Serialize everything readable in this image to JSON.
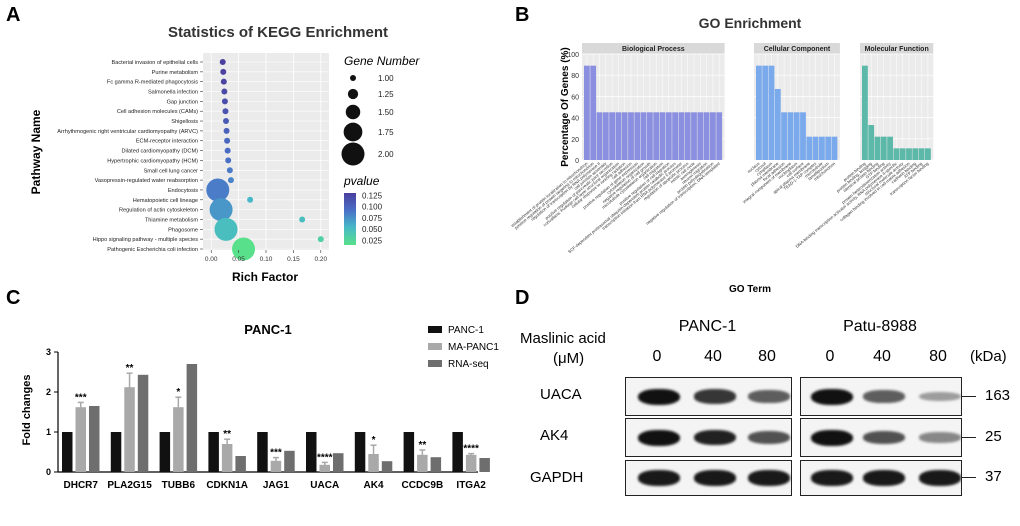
{
  "panels": {
    "a": {
      "label": "A",
      "chart_data": {
        "type": "scatter",
        "title": "Statistics of KEGG Enrichment",
        "xlabel": "Rich Factor",
        "ylabel": "Pathway Name",
        "xlim": [
          -0.015,
          0.215
        ],
        "xticks": [
          "0.00",
          "0.05",
          "0.10",
          "0.15",
          "0.20"
        ],
        "xtick_values": [
          0,
          0.05,
          0.1,
          0.15,
          0.2
        ],
        "pathways": [
          {
            "name": "Bacterial invasion of epithelial cells",
            "rich_factor": 0.021,
            "gene_number": 1,
            "pvalue": 0.13
          },
          {
            "name": "Purine metabolism",
            "rich_factor": 0.022,
            "gene_number": 1,
            "pvalue": 0.128
          },
          {
            "name": "Fc gamma R-mediated phagocytosis",
            "rich_factor": 0.023,
            "gene_number": 1,
            "pvalue": 0.126
          },
          {
            "name": "Salmonella infection",
            "rich_factor": 0.024,
            "gene_number": 1,
            "pvalue": 0.122
          },
          {
            "name": "Gap junction",
            "rich_factor": 0.025,
            "gene_number": 1,
            "pvalue": 0.118
          },
          {
            "name": "Cell adhesion molecules (CAMs)",
            "rich_factor": 0.026,
            "gene_number": 1,
            "pvalue": 0.113
          },
          {
            "name": "Shigellosis",
            "rich_factor": 0.027,
            "gene_number": 1,
            "pvalue": 0.108
          },
          {
            "name": "Arrhythmogenic right ventricular cardiomyopathy (ARVC)",
            "rich_factor": 0.028,
            "gene_number": 1,
            "pvalue": 0.103
          },
          {
            "name": "ECM-receptor interaction",
            "rich_factor": 0.029,
            "gene_number": 1,
            "pvalue": 0.099
          },
          {
            "name": "Dilated cardiomyopathy (DCM)",
            "rich_factor": 0.03,
            "gene_number": 1,
            "pvalue": 0.095
          },
          {
            "name": "Hypertrophic cardiomyopathy (HCM)",
            "rich_factor": 0.031,
            "gene_number": 1,
            "pvalue": 0.092
          },
          {
            "name": "Small cell lung cancer",
            "rich_factor": 0.034,
            "gene_number": 1,
            "pvalue": 0.086
          },
          {
            "name": "Vasopressin-regulated water reabsorption",
            "rich_factor": 0.036,
            "gene_number": 1,
            "pvalue": 0.08
          },
          {
            "name": "Endocytosis",
            "rich_factor": 0.012,
            "gene_number": 2,
            "pvalue": 0.085
          },
          {
            "name": "Hematopoietic cell lineage",
            "rich_factor": 0.071,
            "gene_number": 1,
            "pvalue": 0.05
          },
          {
            "name": "Regulation of actin cytoskeleton",
            "rich_factor": 0.018,
            "gene_number": 2,
            "pvalue": 0.07
          },
          {
            "name": "Thiamine metabolism",
            "rich_factor": 0.166,
            "gene_number": 1,
            "pvalue": 0.045
          },
          {
            "name": "Phagosome",
            "rich_factor": 0.027,
            "gene_number": 2,
            "pvalue": 0.045
          },
          {
            "name": "Hippo signaling pathway - multiple species",
            "rich_factor": 0.2,
            "gene_number": 1,
            "pvalue": 0.03
          },
          {
            "name": "Pathogenic Escherichia coli infection",
            "rich_factor": 0.059,
            "gene_number": 2,
            "pvalue": 0.015
          }
        ],
        "size_legend": {
          "title": "Gene Number",
          "entries": [
            "1.00",
            "1.25",
            "1.50",
            "1.75",
            "2.00"
          ],
          "values": [
            1,
            1.25,
            1.5,
            1.75,
            2
          ]
        },
        "color_legend": {
          "title": "pvalue",
          "ticks": [
            "0.125",
            "0.100",
            "0.075",
            "0.050",
            "0.025"
          ],
          "tick_values": [
            0.125,
            0.1,
            0.075,
            0.05,
            0.025
          ],
          "low_color": "#59e08a",
          "high_color": "#4a3e9e"
        }
      }
    },
    "b": {
      "label": "B",
      "chart_data": {
        "type": "bar",
        "title": "GO Enrichment",
        "xlabel": "GO Term",
        "ylabel": "Percentage Of Genes (%)",
        "ylim": [
          0,
          100
        ],
        "yticks": [
          "0",
          "20",
          "40",
          "60",
          "80",
          "100"
        ],
        "ytick_values": [
          0,
          20,
          40,
          60,
          80,
          100
        ],
        "series": [
          {
            "name": "Biological Process",
            "color": "#8b8fe0",
            "categories": [
              "establishment of protein localization to mitochondrion",
              "positive regulation of protein targeting to mitochondrion",
              "regulation of transcription by RNA polymerase II",
              "cell junction assembly",
              "positive regulation of pancreatic juice secretion",
              "convallaria: Purkinje cell layer structural organization",
              "cellular response to ionizing radiation",
              "cell adhesion",
              "positive regulation of gene expression",
              "cytoskeleton organization",
              "negative regulation of cell growth",
              "microtubule cytoskeleton organization",
              "cell migration",
              "positive regulation of cell migration",
              "SCF-dependent proteasomal ubiquitin-dependent protein catabolic process",
              "transcription initiation from RNA polymerase II promoter",
              "regulation of apoptotic process",
              "mitotic cell cycle",
              "axonogenesis",
              "neuron migration",
              "protein polyubiquitination",
              "negative regulation of transcription, DNA-templated"
            ],
            "values": [
              89,
              89,
              45,
              45,
              45,
              45,
              45,
              45,
              45,
              45,
              45,
              45,
              45,
              45,
              45,
              45,
              45,
              45,
              45,
              45,
              45,
              45
            ]
          },
          {
            "name": "Cellular Component",
            "color": "#7aa9ec",
            "categories": [
              "nucleus",
              "cytosol",
              "cytoplasm",
              "plasma membrane",
              "focal adhesion",
              "integral component of membrane",
              "nucleoplasm",
              "cell surface",
              "apical plasma membrane",
              "TEAD-1-YAP complex",
              "microtubule",
              "lamellipodium",
              "mitochondrion"
            ],
            "values": [
              89,
              89,
              89,
              67,
              45,
              45,
              45,
              45,
              22,
              22,
              22,
              22,
              22
            ]
          },
          {
            "name": "Molecular Function",
            "color": "#5cb8a8",
            "categories": [
              "protein binding",
              "protein binding, bridging",
              "identical protein binding",
              "GTP binding",
              "protein heterodimerization activity",
              "DNA-binding transcription activator activity, RNA polymerase II-specific",
              "structural molecule activity",
              "collagen binding involved in cell-matrix adhesion",
              "cadherin binding",
              "ATP binding",
              "transcription factor binding"
            ],
            "values": [
              89,
              33,
              22,
              22,
              22,
              11,
              11,
              11,
              11,
              11,
              11
            ]
          }
        ]
      }
    },
    "c": {
      "label": "C",
      "chart_data": {
        "type": "bar",
        "title": "PANC-1",
        "xlabel": "",
        "ylabel": "Fold changes",
        "ylim": [
          0,
          3
        ],
        "yticks": [
          "0",
          "1",
          "2",
          "3"
        ],
        "ytick_values": [
          0,
          1,
          2,
          3
        ],
        "categories": [
          "DHCR7",
          "PLA2G15",
          "TUBB6",
          "CDKN1A",
          "JAG1",
          "UACA",
          "AK4",
          "CCDC9B",
          "ITGA2"
        ],
        "series": [
          {
            "name": "PANC-1",
            "color": "#111111",
            "values": [
              1,
              1,
              1,
              1,
              1,
              1,
              1,
              1,
              1
            ]
          },
          {
            "name": "MA-PANC1",
            "color": "#a9a9a9",
            "values": [
              1.62,
              2.12,
              1.62,
              0.7,
              0.28,
              0.18,
              0.45,
              0.43,
              0.43
            ],
            "errors": [
              0.12,
              0.35,
              0.25,
              0.12,
              0.08,
              0.06,
              0.22,
              0.12,
              0.03
            ]
          },
          {
            "name": "RNA-seq",
            "color": "#6e6e6e",
            "values": [
              1.65,
              2.43,
              2.7,
              0.4,
              0.53,
              0.47,
              0.27,
              0.37,
              0.35
            ]
          }
        ],
        "significance": [
          "***",
          "**",
          "*",
          "**",
          "***",
          "****",
          "*",
          "**",
          "****"
        ]
      }
    },
    "d": {
      "label": "D",
      "treatment_line1": "Maslinic acid",
      "treatment_line2": "(μM)",
      "unit_label": "(kDa)",
      "cell_lines": [
        {
          "name": "PANC-1",
          "doses": [
            "0",
            "40",
            "80"
          ]
        },
        {
          "name": "Patu-8988",
          "doses": [
            "0",
            "40",
            "80"
          ]
        }
      ],
      "proteins": [
        {
          "name": "UACA",
          "kda": "163",
          "intensity_panc1": [
            1.0,
            0.78,
            0.55
          ],
          "intensity_patu": [
            1.0,
            0.55,
            0.18
          ]
        },
        {
          "name": "AK4",
          "kda": "25",
          "intensity_panc1": [
            1.0,
            0.9,
            0.62
          ],
          "intensity_patu": [
            1.0,
            0.62,
            0.3
          ]
        },
        {
          "name": "GAPDH",
          "kda": "37",
          "intensity_panc1": [
            0.95,
            0.95,
            0.95
          ],
          "intensity_patu": [
            0.95,
            0.95,
            0.95
          ]
        }
      ]
    }
  }
}
